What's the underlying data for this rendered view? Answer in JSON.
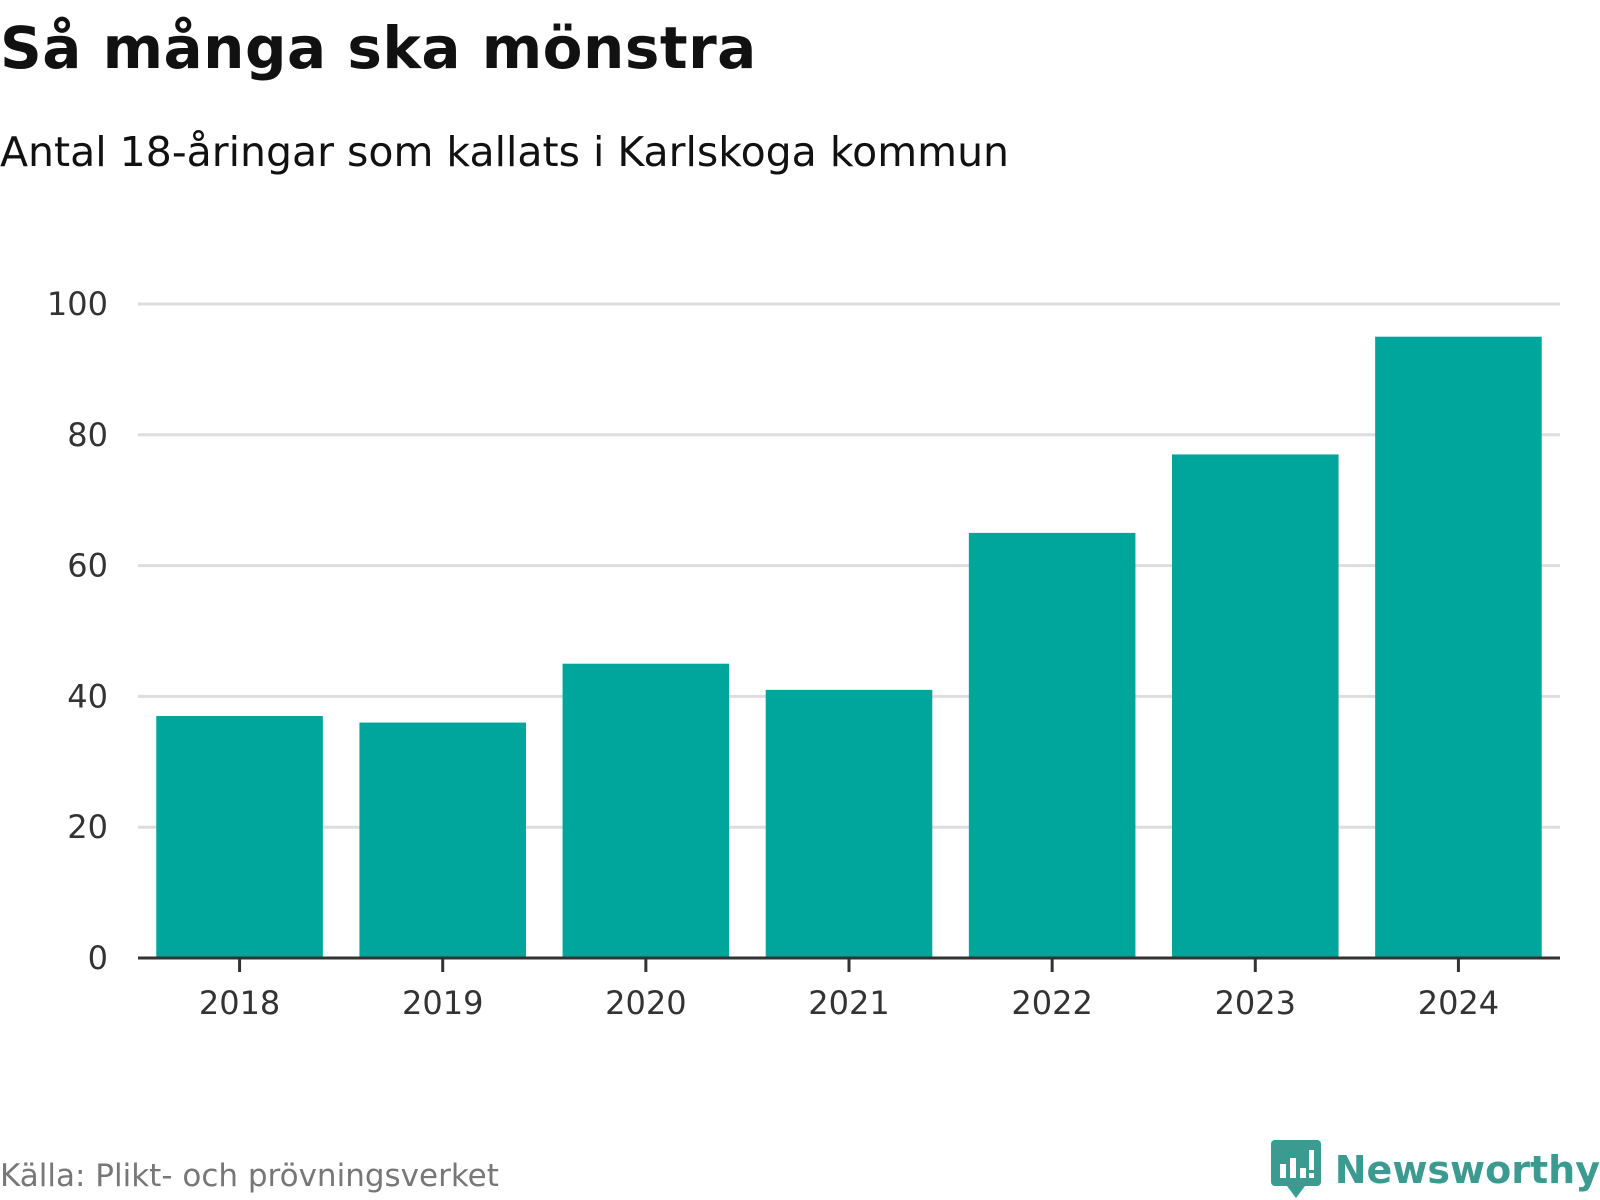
{
  "header": {
    "title": "Så många ska mönstra",
    "subtitle": "Antal 18-åringar som kallats i Karlskoga kommun"
  },
  "footer": {
    "source": "Källa: Plikt- och prövningsverket",
    "brand": "Newsworthy"
  },
  "colors": {
    "bar": "#00a59b",
    "grid": "#dddddd",
    "axis": "#333333",
    "brand": "#3b9b91"
  },
  "chart_data": {
    "type": "bar",
    "title": "Så många ska mönstra",
    "subtitle": "Antal 18-åringar som kallats i Karlskoga kommun",
    "xlabel": "",
    "ylabel": "",
    "categories": [
      "2018",
      "2019",
      "2020",
      "2021",
      "2022",
      "2023",
      "2024"
    ],
    "values": [
      37,
      36,
      45,
      41,
      65,
      77,
      95
    ],
    "ylim": [
      0,
      100
    ],
    "yticks": [
      0,
      20,
      40,
      60,
      80,
      100
    ],
    "grid": true,
    "legend": "none"
  }
}
